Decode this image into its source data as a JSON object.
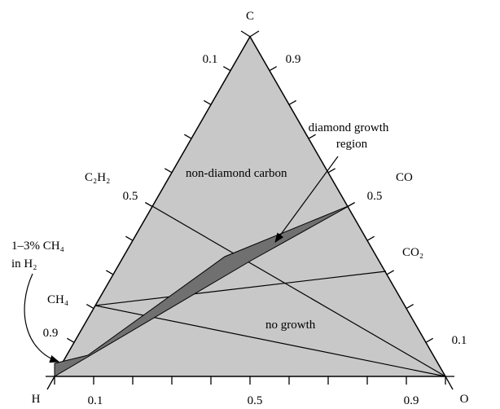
{
  "vertices": {
    "top": "C",
    "left": "H",
    "right": "O"
  },
  "left_ticks": [
    "0.1",
    "0.5",
    "0.9"
  ],
  "right_ticks": [
    "0.9",
    "0.5",
    "0.1"
  ],
  "bottom_ticks": [
    "0.1",
    "0.5",
    "0.9"
  ],
  "species": {
    "c2h2": "C₂H₂",
    "ch4": "CH₄",
    "co": "CO",
    "co2": "CO₂"
  },
  "regions": {
    "non_diamond": "non-diamond carbon",
    "no_growth": "no growth"
  },
  "annotations": {
    "diamond_growth": [
      "diamond growth",
      "region"
    ],
    "methane": [
      "1–3% CH₄",
      "in H₂"
    ]
  }
}
